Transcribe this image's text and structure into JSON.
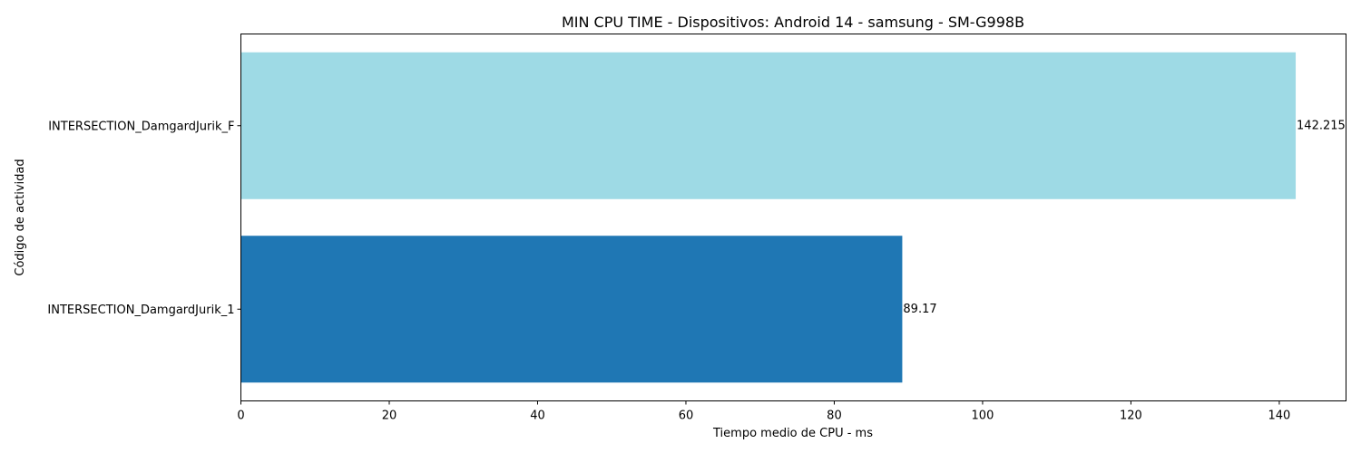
{
  "chart_data": {
    "type": "bar",
    "orientation": "horizontal",
    "title": "MIN CPU TIME - Dispositivos: Android 14 - samsung - SM-G998B",
    "xlabel": "Tiempo medio de CPU - ms",
    "ylabel": "Código de actividad",
    "categories": [
      "INTERSECTION_DamgardJurik_1",
      "INTERSECTION_DamgardJurik_F"
    ],
    "values": [
      89.17,
      142.215
    ],
    "data_labels": [
      "89.17",
      "142.215"
    ],
    "bar_colors": [
      "#1f77b4",
      "#9edae5"
    ],
    "xlim": [
      0,
      149
    ],
    "xticks": [
      0,
      20,
      40,
      60,
      80,
      100,
      120,
      140
    ],
    "grid": false,
    "legend": "none"
  }
}
